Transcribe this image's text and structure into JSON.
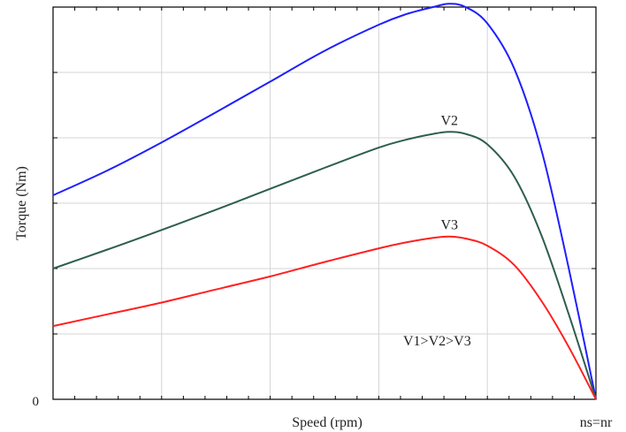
{
  "chart_data": {
    "type": "line",
    "xlabel": "Speed (rpm)",
    "ylabel": "Torque (Nm)",
    "x_tick_labels": [
      "ns=nr"
    ],
    "y_tick_labels": [
      "0"
    ],
    "xlim": [
      0,
      1
    ],
    "ylim": [
      0,
      6
    ],
    "grid": true,
    "annotation": "V1>V2>V3",
    "series": [
      {
        "name": "V1",
        "color": "#1f1fff",
        "x": [
          0,
          0.1,
          0.2,
          0.3,
          0.4,
          0.5,
          0.6,
          0.65,
          0.7,
          0.73,
          0.76,
          0.8,
          0.85,
          0.9,
          0.95,
          1.0
        ],
        "y": [
          3.12,
          3.5,
          3.93,
          4.39,
          4.86,
          5.33,
          5.73,
          5.89,
          6.0,
          6.05,
          6.0,
          5.75,
          5.05,
          3.8,
          2.0,
          0
        ]
      },
      {
        "name": "V2",
        "color": "#2e5e4e",
        "x": [
          0,
          0.1,
          0.2,
          0.3,
          0.4,
          0.5,
          0.6,
          0.65,
          0.7,
          0.73,
          0.76,
          0.8,
          0.85,
          0.9,
          0.95,
          1.0
        ],
        "y": [
          2.0,
          2.29,
          2.59,
          2.9,
          3.22,
          3.54,
          3.85,
          3.97,
          4.06,
          4.09,
          4.06,
          3.9,
          3.4,
          2.5,
          1.3,
          0
        ]
      },
      {
        "name": "V3",
        "color": "#ff2020",
        "x": [
          0,
          0.1,
          0.2,
          0.3,
          0.4,
          0.5,
          0.6,
          0.65,
          0.7,
          0.73,
          0.76,
          0.8,
          0.85,
          0.9,
          0.95,
          1.0
        ],
        "y": [
          1.12,
          1.3,
          1.48,
          1.68,
          1.88,
          2.1,
          2.31,
          2.4,
          2.47,
          2.49,
          2.46,
          2.35,
          2.05,
          1.5,
          0.8,
          0
        ]
      }
    ]
  }
}
